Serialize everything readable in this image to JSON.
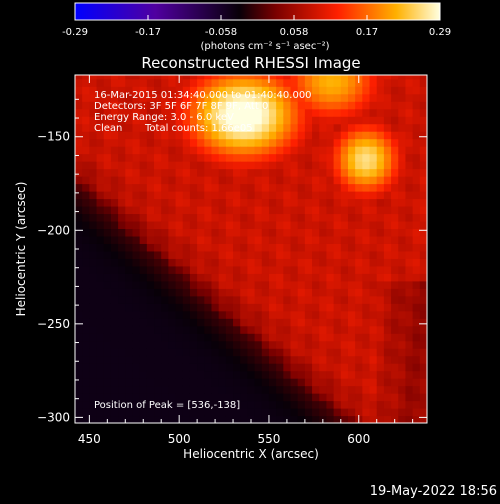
{
  "chart_data": {
    "type": "heatmap",
    "title": "Reconstructed RHESSI Image",
    "xlabel": "Heliocentric X (arcsec)",
    "ylabel": "Heliocentric Y (arcsec)",
    "xlim": [
      442,
      638
    ],
    "ylim": [
      -303,
      -117
    ],
    "xticks": [
      450,
      500,
      550,
      600
    ],
    "yticks": [
      -150,
      -200,
      -250,
      -300
    ],
    "colorbar": {
      "range": [
        -0.29,
        0.29
      ],
      "ticks": [
        "-0.29",
        "-0.17",
        "-0.058",
        "0.058",
        "0.17",
        "0.29"
      ],
      "unit_label": "(photons cm⁻² s⁻¹ asec⁻²)",
      "colormap": [
        "#0000ff",
        "#4b0082",
        "#000000",
        "#a00000",
        "#ff4500",
        "#ffd000",
        "#ffffff"
      ]
    },
    "annotations": [
      "16-Mar-2015 01:34:40.000 to 01:40:40.000",
      "Detectors: 3F 5F 6F 7F 8F 9F, Att 0",
      "Energy Range: 3.0 - 6.0 keV",
      "Clean",
      "Total counts: 1.66e05"
    ],
    "peak_label": "Position of Peak = [536,-138]",
    "peak": {
      "x": 536,
      "y": -138
    },
    "emission_sources": [
      {
        "x": 536,
        "y": -138,
        "peak": 0.29
      },
      {
        "x": 604,
        "y": -162,
        "peak": 0.24
      },
      {
        "x": 585,
        "y": -120,
        "peak": 0.2
      }
    ],
    "footer_timestamp": "19-May-2022 18:56"
  }
}
